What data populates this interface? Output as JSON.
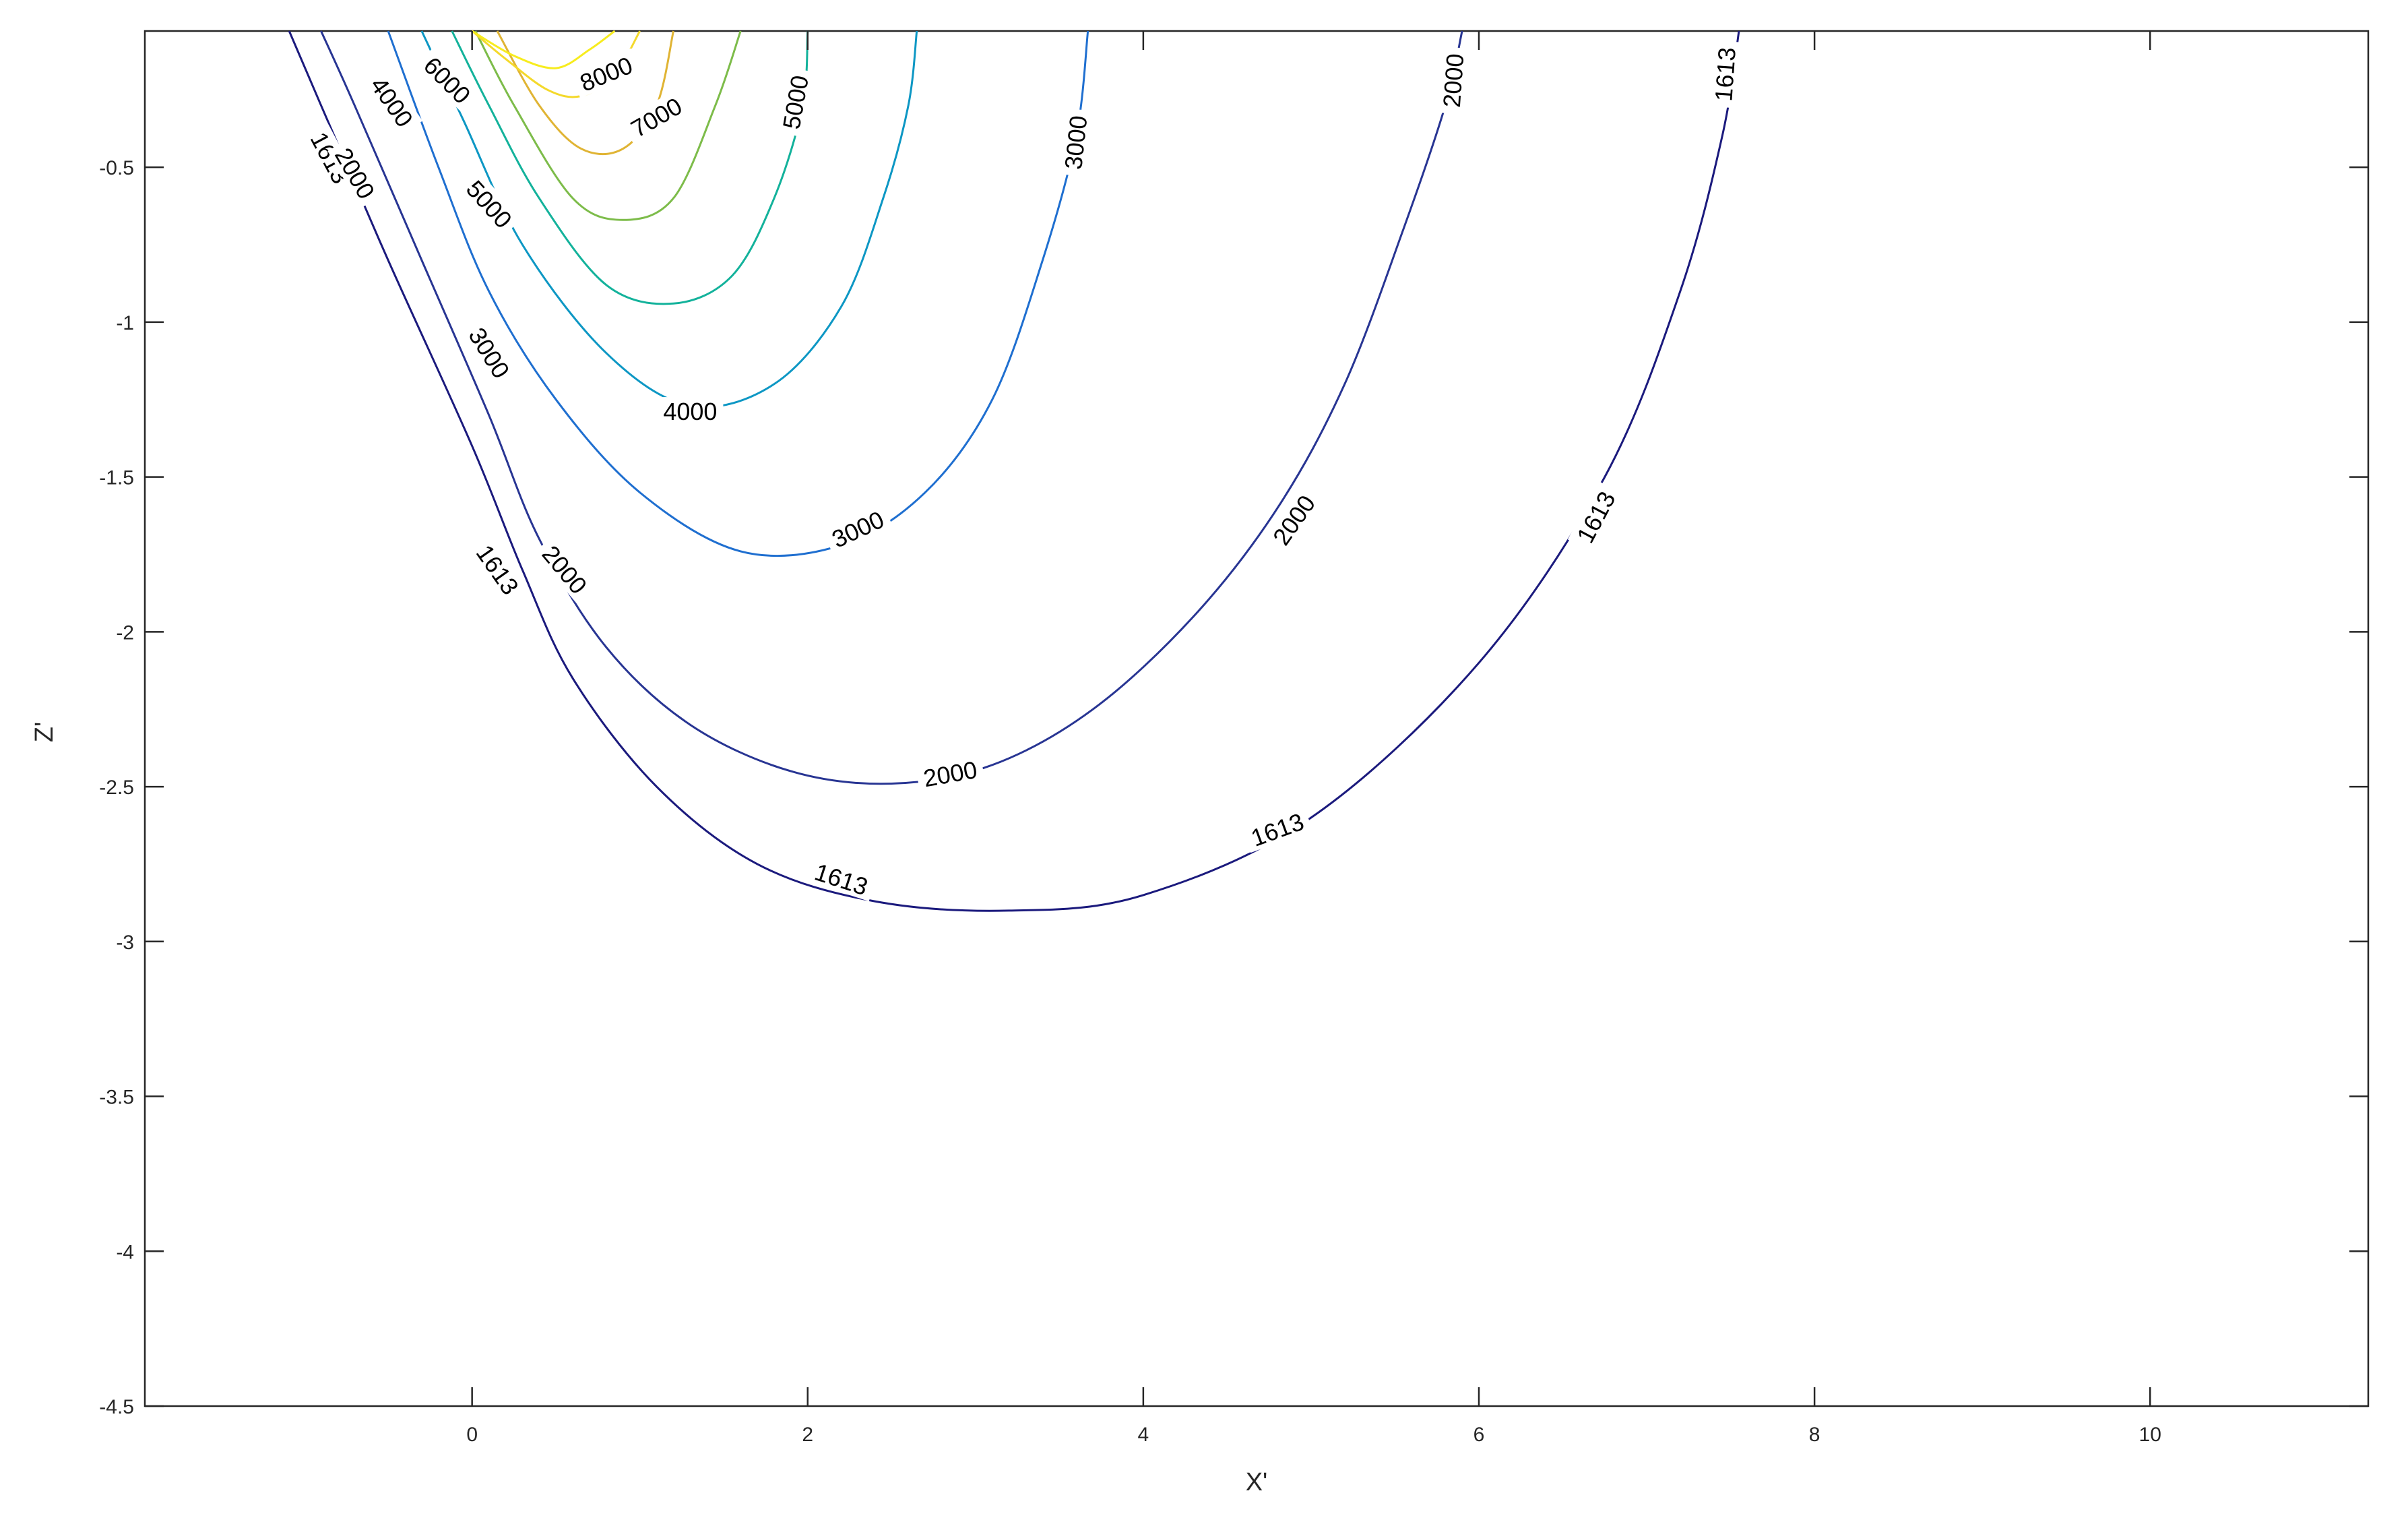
{
  "chart_data": {
    "type": "contour",
    "title": "",
    "xlabel": "X'",
    "ylabel": "Z'",
    "xlim": [
      -1.95,
      11.3
    ],
    "ylim": [
      -4.5,
      -0.06
    ],
    "xticks": [
      0,
      2,
      4,
      6,
      8,
      10
    ],
    "xtick_labels": [
      "0",
      "2",
      "4",
      "6",
      "8",
      "10"
    ],
    "yticks": [
      -0.5,
      -1,
      -1.5,
      -2,
      -2.5,
      -3,
      -3.5,
      -4,
      -4.5
    ],
    "ytick_labels": [
      "-0.5",
      "-1",
      "-1.5",
      "-2",
      "-2.5",
      "-3",
      "-3.5",
      "-4",
      "-4.5"
    ],
    "grid": false,
    "colormap": "parula",
    "contours": [
      {
        "level": 1613,
        "label": "1613",
        "color": "#1b1a7d",
        "points": [
          [
            -1.09,
            -0.06
          ],
          [
            -0.9,
            -0.3
          ],
          [
            -0.5,
            -0.8
          ],
          [
            0,
            -1.4
          ],
          [
            0.3,
            -1.8
          ],
          [
            0.6,
            -2.15
          ],
          [
            1.1,
            -2.5
          ],
          [
            1.7,
            -2.75
          ],
          [
            2.4,
            -2.87
          ],
          [
            3.2,
            -2.9
          ],
          [
            4.0,
            -2.85
          ],
          [
            5.0,
            -2.6
          ],
          [
            6.0,
            -2.1
          ],
          [
            6.75,
            -1.5
          ],
          [
            7.2,
            -0.9
          ],
          [
            7.45,
            -0.4
          ],
          [
            7.55,
            -0.06
          ]
        ],
        "labels": [
          {
            "text": "1613",
            "x": -0.85,
            "y": -0.47,
            "angle": 62
          },
          {
            "text": "1613",
            "x": 0.15,
            "y": -1.8,
            "angle": 55
          },
          {
            "text": "1613",
            "x": 2.2,
            "y": -2.8,
            "angle": 18
          },
          {
            "text": "1613",
            "x": 4.8,
            "y": -2.64,
            "angle": -20
          },
          {
            "text": "1613",
            "x": 6.7,
            "y": -1.63,
            "angle": -62
          },
          {
            "text": "1613",
            "x": 7.47,
            "y": -0.2,
            "angle": -86
          }
        ]
      },
      {
        "level": 2000,
        "label": "2000",
        "color": "#283593",
        "points": [
          [
            -0.9,
            -0.06
          ],
          [
            -0.7,
            -0.3
          ],
          [
            -0.3,
            -0.8
          ],
          [
            0.1,
            -1.3
          ],
          [
            0.4,
            -1.7
          ],
          [
            0.8,
            -2.05
          ],
          [
            1.3,
            -2.3
          ],
          [
            1.9,
            -2.45
          ],
          [
            2.5,
            -2.49
          ],
          [
            3.1,
            -2.43
          ],
          [
            3.7,
            -2.25
          ],
          [
            4.3,
            -1.95
          ],
          [
            4.8,
            -1.6
          ],
          [
            5.2,
            -1.2
          ],
          [
            5.55,
            -0.7
          ],
          [
            5.8,
            -0.3
          ],
          [
            5.9,
            -0.06
          ]
        ],
        "labels": [
          {
            "text": "2000",
            "x": -0.7,
            "y": -0.52,
            "angle": 60
          },
          {
            "text": "2000",
            "x": 0.55,
            "y": -1.8,
            "angle": 50
          },
          {
            "text": "2000",
            "x": 2.85,
            "y": -2.46,
            "angle": -10
          },
          {
            "text": "2000",
            "x": 4.9,
            "y": -1.64,
            "angle": -55
          },
          {
            "text": "2000",
            "x": 5.85,
            "y": -0.22,
            "angle": -86
          }
        ]
      },
      {
        "level": 3000,
        "label": "3000",
        "color": "#1f6fd0",
        "points": [
          [
            -0.5,
            -0.06
          ],
          [
            -0.2,
            -0.5
          ],
          [
            0.1,
            -0.9
          ],
          [
            0.5,
            -1.25
          ],
          [
            1.0,
            -1.55
          ],
          [
            1.6,
            -1.74
          ],
          [
            2.2,
            -1.72
          ],
          [
            2.7,
            -1.55
          ],
          [
            3.1,
            -1.25
          ],
          [
            3.4,
            -0.8
          ],
          [
            3.6,
            -0.4
          ],
          [
            3.67,
            -0.06
          ]
        ],
        "labels": [
          {
            "text": "3000",
            "x": 0.1,
            "y": -1.1,
            "angle": 58
          },
          {
            "text": "3000",
            "x": 2.3,
            "y": -1.67,
            "angle": -25
          },
          {
            "text": "3000",
            "x": 3.6,
            "y": -0.42,
            "angle": -84
          }
        ]
      },
      {
        "level": 4000,
        "label": "4000",
        "color": "#0d97c4",
        "points": [
          [
            -0.3,
            -0.06
          ],
          [
            -0.05,
            -0.35
          ],
          [
            0.3,
            -0.75
          ],
          [
            0.8,
            -1.1
          ],
          [
            1.3,
            -1.27
          ],
          [
            1.8,
            -1.2
          ],
          [
            2.2,
            -0.95
          ],
          [
            2.45,
            -0.6
          ],
          [
            2.6,
            -0.3
          ],
          [
            2.65,
            -0.06
          ]
        ],
        "labels": [
          {
            "text": "4000",
            "x": -0.48,
            "y": -0.29,
            "angle": 55
          },
          {
            "text": "4000",
            "x": 1.3,
            "y": -1.29,
            "angle": 0
          }
        ]
      },
      {
        "level": 5000,
        "label": "5000",
        "color": "#13b29b",
        "points": [
          [
            -0.12,
            -0.06
          ],
          [
            0.1,
            -0.3
          ],
          [
            0.4,
            -0.6
          ],
          [
            0.8,
            -0.88
          ],
          [
            1.2,
            -0.94
          ],
          [
            1.55,
            -0.85
          ],
          [
            1.8,
            -0.6
          ],
          [
            1.97,
            -0.3
          ],
          [
            2.0,
            -0.06
          ]
        ],
        "labels": [
          {
            "text": "5000",
            "x": 0.1,
            "y": -0.62,
            "angle": 48
          },
          {
            "text": "5000",
            "x": 1.93,
            "y": -0.29,
            "angle": -80
          }
        ]
      },
      {
        "level": 6000,
        "label": "6000",
        "color": "#7dbc4a",
        "points": [
          [
            0.02,
            -0.06
          ],
          [
            0.25,
            -0.3
          ],
          [
            0.6,
            -0.6
          ],
          [
            0.9,
            -0.67
          ],
          [
            1.2,
            -0.6
          ],
          [
            1.45,
            -0.3
          ],
          [
            1.6,
            -0.06
          ]
        ],
        "labels": [
          {
            "text": "6000",
            "x": -0.15,
            "y": -0.22,
            "angle": 45
          }
        ]
      },
      {
        "level": 7000,
        "label": "7000",
        "color": "#e0b434",
        "points": [
          [
            0.15,
            -0.06
          ],
          [
            0.4,
            -0.3
          ],
          [
            0.65,
            -0.44
          ],
          [
            0.9,
            -0.44
          ],
          [
            1.1,
            -0.3
          ],
          [
            1.2,
            -0.06
          ]
        ],
        "labels": [
          {
            "text": "7000",
            "x": 1.1,
            "y": -0.34,
            "angle": -30
          }
        ]
      },
      {
        "level": 8000,
        "label": "8000",
        "color": "#f4d92b",
        "points": [
          [
            0.0,
            -0.06
          ],
          [
            0.2,
            -0.15
          ],
          [
            0.45,
            -0.25
          ],
          [
            0.65,
            -0.27
          ],
          [
            0.85,
            -0.2
          ],
          [
            1.0,
            -0.06
          ]
        ],
        "labels": [
          {
            "text": "8000",
            "x": 0.8,
            "y": -0.2,
            "angle": -22
          }
        ]
      },
      {
        "level": 9000,
        "label": "",
        "color": "#f7ec1e",
        "points": [
          [
            0.0,
            -0.06
          ],
          [
            0.25,
            -0.14
          ],
          [
            0.5,
            -0.18
          ],
          [
            0.7,
            -0.12
          ],
          [
            0.85,
            -0.06
          ]
        ],
        "labels": []
      }
    ]
  }
}
